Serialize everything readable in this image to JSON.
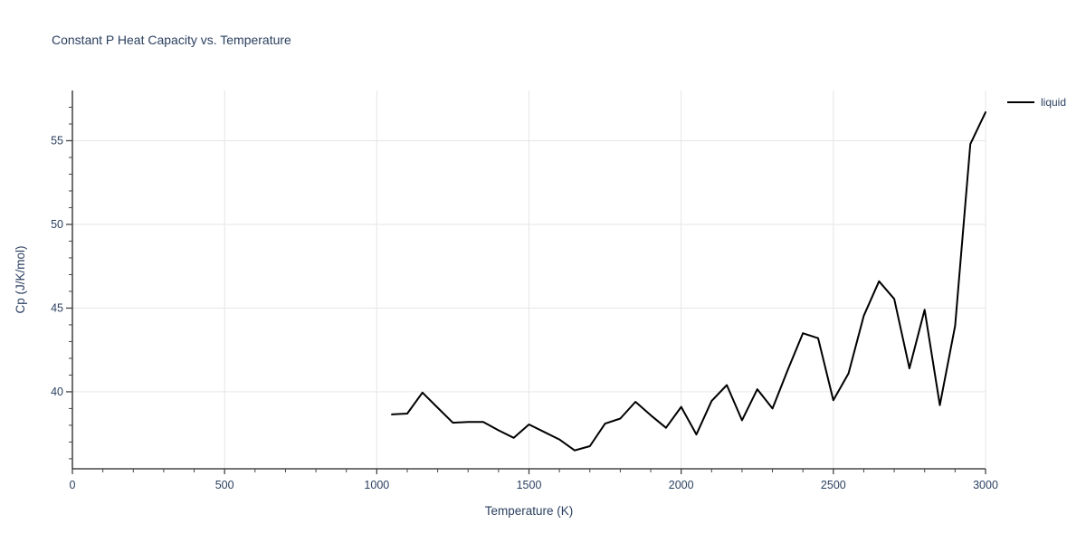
{
  "title": "Constant P Heat Capacity vs. Temperature",
  "colors": {
    "text": "#2a3f5f",
    "grid": "#e6e6e6",
    "axis_line": "#222222",
    "tick": "#444444",
    "series_liquid": "#000000"
  },
  "legend": {
    "entries": [
      {
        "label": "liquid",
        "color": "#000000"
      }
    ]
  },
  "chart_data": {
    "type": "line",
    "title": "Constant P Heat Capacity vs. Temperature",
    "xlabel": "Temperature (K)",
    "ylabel": "Cp (J/K/mol)",
    "xlim": [
      0,
      3000
    ],
    "ylim": [
      35.4,
      58.0
    ],
    "x_major_ticks": [
      0,
      500,
      1000,
      1500,
      2000,
      2500,
      3000
    ],
    "x_minor_step": 100,
    "y_major_ticks": [
      40,
      45,
      50,
      55
    ],
    "y_minor_step": 1,
    "y_minor_range": [
      36,
      57
    ],
    "grid": true,
    "legend_position": "top-right-outside",
    "series": [
      {
        "name": "liquid",
        "color": "#000000",
        "x": [
          1050,
          1100,
          1150,
          1200,
          1250,
          1300,
          1350,
          1400,
          1450,
          1500,
          1550,
          1600,
          1650,
          1700,
          1750,
          1800,
          1850,
          1900,
          1950,
          2000,
          2050,
          2100,
          2150,
          2200,
          2250,
          2300,
          2350,
          2400,
          2450,
          2500,
          2550,
          2600,
          2650,
          2700,
          2750,
          2800,
          2850,
          2900,
          2950,
          3000
        ],
        "y": [
          38.65,
          38.7,
          39.95,
          39.05,
          38.15,
          38.2,
          38.2,
          37.7,
          37.25,
          38.05,
          37.6,
          37.15,
          36.5,
          36.75,
          38.1,
          38.4,
          39.4,
          38.6,
          37.85,
          39.1,
          37.45,
          39.45,
          40.4,
          38.3,
          40.15,
          39.0,
          41.3,
          43.5,
          43.2,
          39.5,
          41.1,
          44.55,
          46.6,
          45.55,
          41.4,
          44.9,
          39.2,
          43.95,
          54.8,
          56.7
        ]
      }
    ]
  }
}
